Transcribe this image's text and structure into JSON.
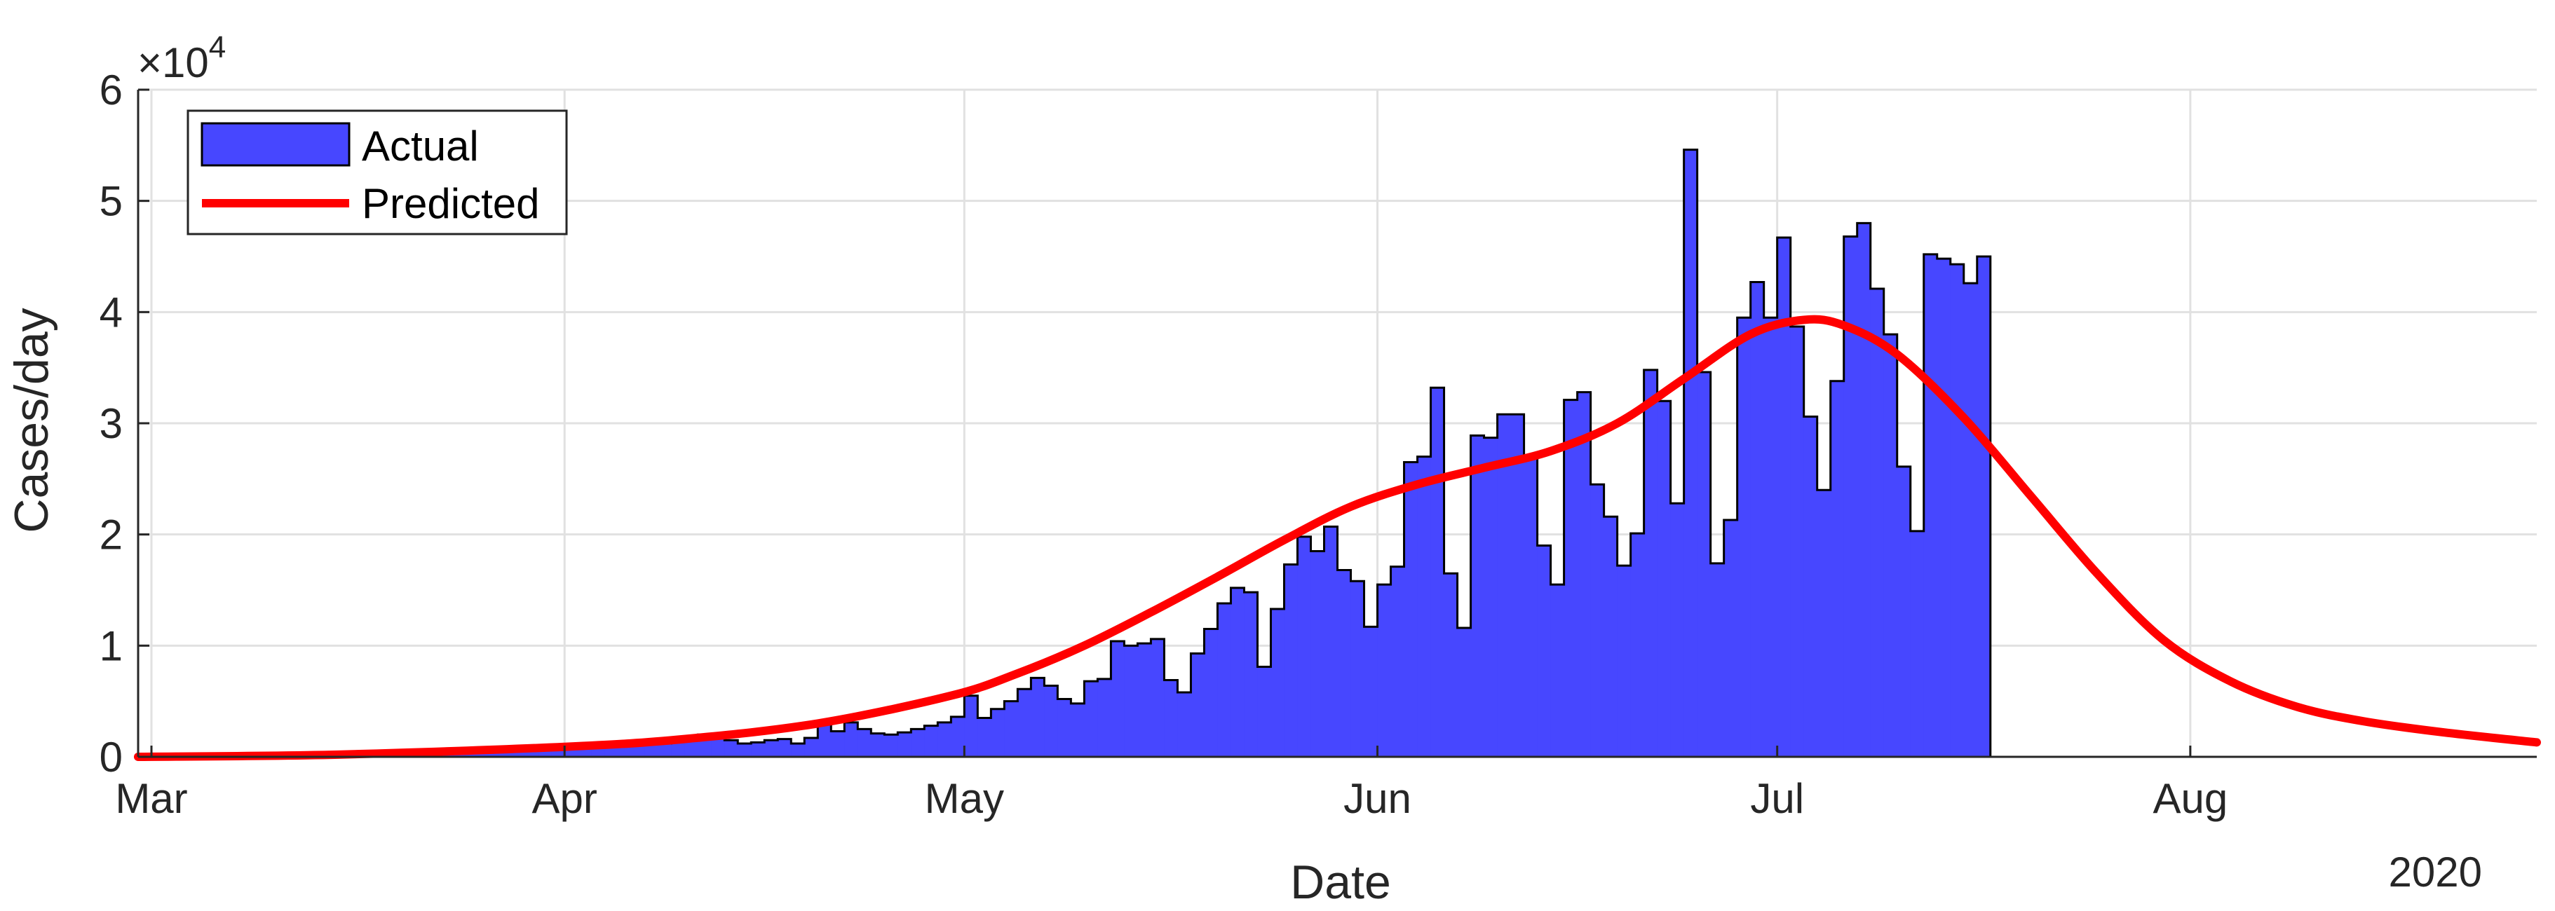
{
  "chart_data": {
    "type": "bar",
    "xlabel": "Date",
    "ylabel": "Cases/day",
    "year_label": "2020",
    "y_exponent_base": "×10",
    "y_exponent_power": "4",
    "y_multiplier": 10000,
    "ylim": [
      0,
      6
    ],
    "y_ticks": [
      0,
      1,
      2,
      3,
      4,
      5,
      6
    ],
    "xlim": [
      "2020-02-29",
      "2020-08-27"
    ],
    "x_ticks": [
      {
        "date": "2020-03-01",
        "label": "Mar"
      },
      {
        "date": "2020-04-01",
        "label": "Apr"
      },
      {
        "date": "2020-05-01",
        "label": "May"
      },
      {
        "date": "2020-06-01",
        "label": "Jun"
      },
      {
        "date": "2020-07-01",
        "label": "Jul"
      },
      {
        "date": "2020-08-01",
        "label": "Aug"
      }
    ],
    "grid": true,
    "legend": {
      "position": "top-left",
      "entries": [
        "Actual",
        "Predicted"
      ]
    },
    "colors": {
      "actual_fill": "#4747ff",
      "actual_edge": "#000000",
      "predicted": "#ff0000",
      "grid": "#e1e1e1",
      "axis": "#262626"
    },
    "series": [
      {
        "name": "Actual",
        "style": "stairs",
        "start_date": "2020-03-01",
        "values": [
          0.0,
          0.0,
          0.0,
          0.0,
          0.0,
          0.0,
          0.0,
          0.0,
          0.0,
          0.0,
          0.0,
          0.0,
          0.0,
          0.0,
          0.01,
          0.01,
          0.01,
          0.01,
          0.02,
          0.02,
          0.03,
          0.03,
          0.04,
          0.05,
          0.05,
          0.06,
          0.07,
          0.08,
          0.08,
          0.09,
          0.09,
          0.1,
          0.1,
          0.1,
          0.11,
          0.11,
          0.12,
          0.12,
          0.12,
          0.15,
          0.16,
          0.2,
          0.18,
          0.15,
          0.12,
          0.13,
          0.15,
          0.16,
          0.12,
          0.17,
          0.29,
          0.23,
          0.31,
          0.25,
          0.21,
          0.2,
          0.22,
          0.25,
          0.28,
          0.31,
          0.36,
          0.55,
          0.35,
          0.43,
          0.5,
          0.61,
          0.71,
          0.64,
          0.52,
          0.48,
          0.68,
          0.7,
          1.04,
          1.0,
          1.02,
          1.06,
          0.69,
          0.58,
          0.93,
          1.15,
          1.38,
          1.52,
          1.48,
          0.81,
          1.33,
          1.73,
          1.98,
          1.85,
          2.07,
          1.68,
          1.58,
          1.17,
          1.55,
          1.71,
          2.65,
          2.7,
          3.32,
          1.65,
          1.16,
          2.89,
          2.87,
          3.08,
          3.08,
          2.71,
          1.9,
          1.55,
          3.21,
          3.28,
          2.45,
          2.16,
          1.72,
          2.01,
          3.48,
          3.2,
          2.28,
          5.46,
          3.46,
          1.74,
          2.13,
          3.95,
          4.27,
          3.95,
          4.67,
          3.87,
          3.06,
          2.4,
          3.38,
          4.68,
          4.8,
          4.21,
          3.8,
          2.61,
          2.03,
          4.52,
          4.48,
          4.43,
          4.26,
          4.5
        ]
      },
      {
        "name": "Predicted",
        "style": "line",
        "points": [
          [
            "2020-02-29",
            0.0
          ],
          [
            "2020-03-15",
            0.02
          ],
          [
            "2020-04-01",
            0.09
          ],
          [
            "2020-04-10",
            0.16
          ],
          [
            "2020-04-20",
            0.3
          ],
          [
            "2020-04-30",
            0.55
          ],
          [
            "2020-05-05",
            0.75
          ],
          [
            "2020-05-10",
            1.0
          ],
          [
            "2020-05-15",
            1.3
          ],
          [
            "2020-05-20",
            1.62
          ],
          [
            "2020-05-25",
            1.95
          ],
          [
            "2020-05-30",
            2.25
          ],
          [
            "2020-06-04",
            2.45
          ],
          [
            "2020-06-09",
            2.6
          ],
          [
            "2020-06-14",
            2.75
          ],
          [
            "2020-06-19",
            3.0
          ],
          [
            "2020-06-24",
            3.4
          ],
          [
            "2020-06-29",
            3.8
          ],
          [
            "2020-07-03",
            3.93
          ],
          [
            "2020-07-06",
            3.88
          ],
          [
            "2020-07-10",
            3.62
          ],
          [
            "2020-07-15",
            3.05
          ],
          [
            "2020-07-20",
            2.35
          ],
          [
            "2020-07-25",
            1.65
          ],
          [
            "2020-07-30",
            1.05
          ],
          [
            "2020-08-04",
            0.68
          ],
          [
            "2020-08-09",
            0.45
          ],
          [
            "2020-08-14",
            0.32
          ],
          [
            "2020-08-20",
            0.22
          ],
          [
            "2020-08-27",
            0.13
          ]
        ]
      }
    ]
  }
}
